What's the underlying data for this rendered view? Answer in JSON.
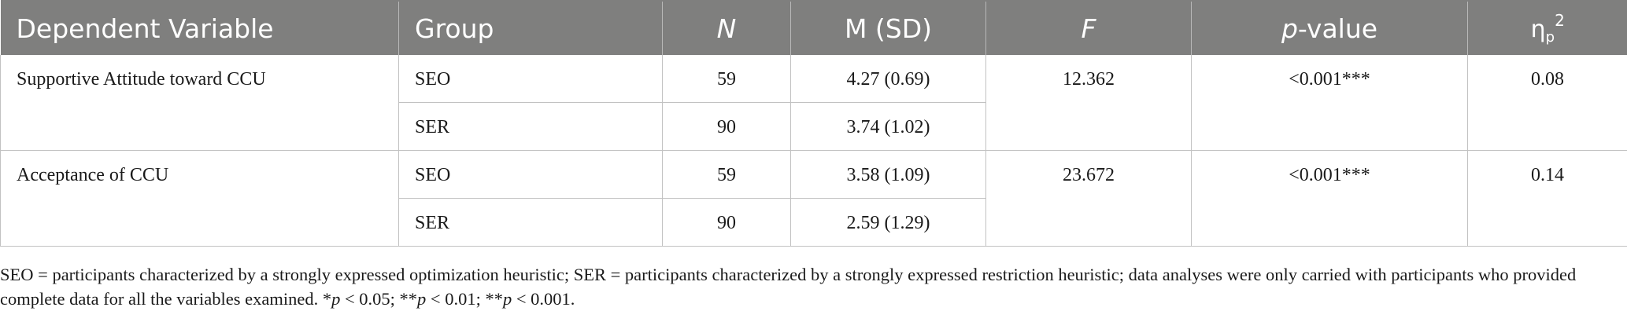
{
  "table": {
    "headers": {
      "dependent_variable": "Dependent Variable",
      "group": "Group",
      "n": "N",
      "m_sd": "M (SD)",
      "f": "F",
      "p_value_p": "p",
      "p_value_rest": "-value",
      "eta_symbol": "η",
      "eta_sub": "p",
      "eta_sup": "2"
    },
    "rows": [
      {
        "dependent_variable": "Supportive Attitude toward CCU",
        "f": "12.362",
        "p_value": "<0.001***",
        "eta": "0.08",
        "groups": [
          {
            "group": "SEO",
            "n": "59",
            "m_sd": "4.27 (0.69)"
          },
          {
            "group": "SER",
            "n": "90",
            "m_sd": "3.74 (1.02)"
          }
        ]
      },
      {
        "dependent_variable": "Acceptance of CCU",
        "f": "23.672",
        "p_value": "<0.001***",
        "eta": "0.14",
        "groups": [
          {
            "group": "SEO",
            "n": "59",
            "m_sd": "3.58 (1.09)"
          },
          {
            "group": "SER",
            "n": "90",
            "m_sd": "2.59 (1.29)"
          }
        ]
      }
    ]
  },
  "note": {
    "part1": "SEO = participants characterized by a strongly expressed optimization heuristic; SER = participants characterized by a strongly expressed restriction heuristic; data analyses were only carried with participants who provided complete data for all the variables examined. *",
    "p1": "p",
    "part2": " < 0.05; **",
    "p2": "p",
    "part3": " < 0.01; **",
    "p3": "p",
    "part4": " < 0.001."
  }
}
